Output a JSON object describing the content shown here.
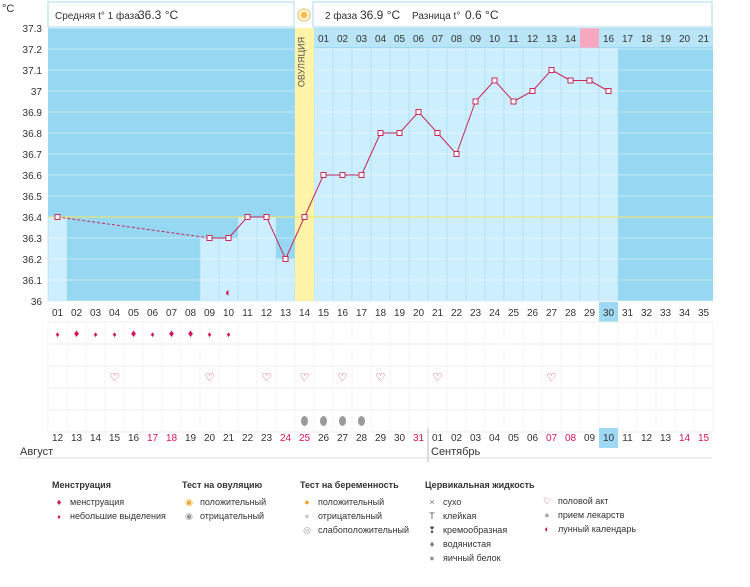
{
  "chart_data": {
    "type": "line",
    "title_unit": "°C",
    "y_ticks": [
      "37.3",
      "37.2",
      "37.1",
      "37",
      "36.9",
      "36.8",
      "36.7",
      "36.6",
      "36.5",
      "36.4",
      "36.3",
      "36.2",
      "36.1",
      "36"
    ],
    "ylim": [
      36,
      37.3
    ],
    "cycle_days": [
      "01",
      "02",
      "03",
      "04",
      "05",
      "06",
      "07",
      "08",
      "09",
      "10",
      "11",
      "12",
      "13",
      "14",
      "15",
      "16",
      "17",
      "18",
      "19",
      "20",
      "21",
      "22",
      "23",
      "24",
      "25",
      "26",
      "27",
      "28",
      "29",
      "30",
      "31",
      "32",
      "33",
      "34",
      "35"
    ],
    "temperatures": [
      36.4,
      null,
      null,
      null,
      null,
      null,
      null,
      null,
      36.3,
      36.3,
      36.4,
      36.4,
      36.2,
      36.4,
      36.6,
      36.6,
      36.6,
      36.8,
      36.8,
      36.9,
      36.8,
      36.7,
      36.95,
      37.05,
      36.95,
      37.0,
      37.1,
      37.05,
      37.05,
      37.0,
      null,
      null,
      null,
      null,
      null
    ],
    "coverline": 36.4,
    "ovulation_day": 14,
    "current_day": 30,
    "predicted_period_luteal_day": 15,
    "luteal_days": [
      "01",
      "02",
      "03",
      "04",
      "05",
      "06",
      "07",
      "08",
      "09",
      "10",
      "11",
      "12",
      "13",
      "14",
      "15",
      "16",
      "17",
      "18",
      "19",
      "20",
      "21"
    ],
    "ovulation_label": "ОВУЛЯЦИЯ",
    "calendar_dates": [
      "12",
      "13",
      "14",
      "15",
      "16",
      "17",
      "18",
      "19",
      "20",
      "21",
      "22",
      "23",
      "24",
      "25",
      "26",
      "27",
      "28",
      "29",
      "30",
      "31",
      "01",
      "02",
      "03",
      "04",
      "05",
      "06",
      "07",
      "08",
      "09",
      "10",
      "11",
      "12",
      "13",
      "14",
      "15"
    ],
    "weekend_indices": [
      5,
      6,
      12,
      13,
      19,
      26,
      27,
      33,
      34
    ],
    "today_calendar_index": 29,
    "month_labels": {
      "first": "Август",
      "second": "Сентябрь"
    },
    "month_break_index": 20
  },
  "header": {
    "phase1_label": "Средняя t° 1 фаза",
    "phase1_value": "36.3 °C",
    "phase2_label": "2 фаза",
    "phase2_value": "36.9 °C",
    "diff_label": "Разница t°",
    "diff_value": "0.6 °C"
  },
  "markers": {
    "menstruation_days": [
      1,
      2,
      3,
      4,
      5,
      6,
      7,
      8,
      9,
      10
    ],
    "menstruation_heavy_days": [
      2,
      5,
      7,
      8
    ],
    "moon_day": 10,
    "intercourse_days": [
      4,
      9,
      12,
      14,
      16,
      18,
      21,
      27
    ],
    "pregnancy_test_negative_days": [
      14,
      15,
      16,
      17
    ]
  },
  "legend": {
    "menstruation": {
      "title": "Менструация",
      "items": [
        "менструация",
        "небольшие выделения"
      ]
    },
    "ovulation_test": {
      "title": "Тест на овуляцию",
      "items": [
        "положительный",
        "отрицательный"
      ]
    },
    "pregnancy_test": {
      "title": "Тест на беременность",
      "items": [
        "положительный",
        "отрицательный",
        "слабоположительный"
      ]
    },
    "cervical_fluid": {
      "title": "Цервикальная жидкость",
      "items": [
        "сухо",
        "клейкая",
        "кремообразная",
        "водянистая",
        "яичный белок"
      ]
    },
    "other": {
      "items": [
        "половой акт",
        "прием лекарств",
        "лунный календарь"
      ]
    }
  },
  "colors": {
    "sky": "#96d8f2",
    "bar": "#cdeefc",
    "bar_border": "#a7dcf3",
    "line": "#c8285a",
    "ovulation": "#fef3a6",
    "period_pred": "#f7a8c1",
    "today": "#9fd8f2",
    "weekend_text": "#d4145a"
  }
}
